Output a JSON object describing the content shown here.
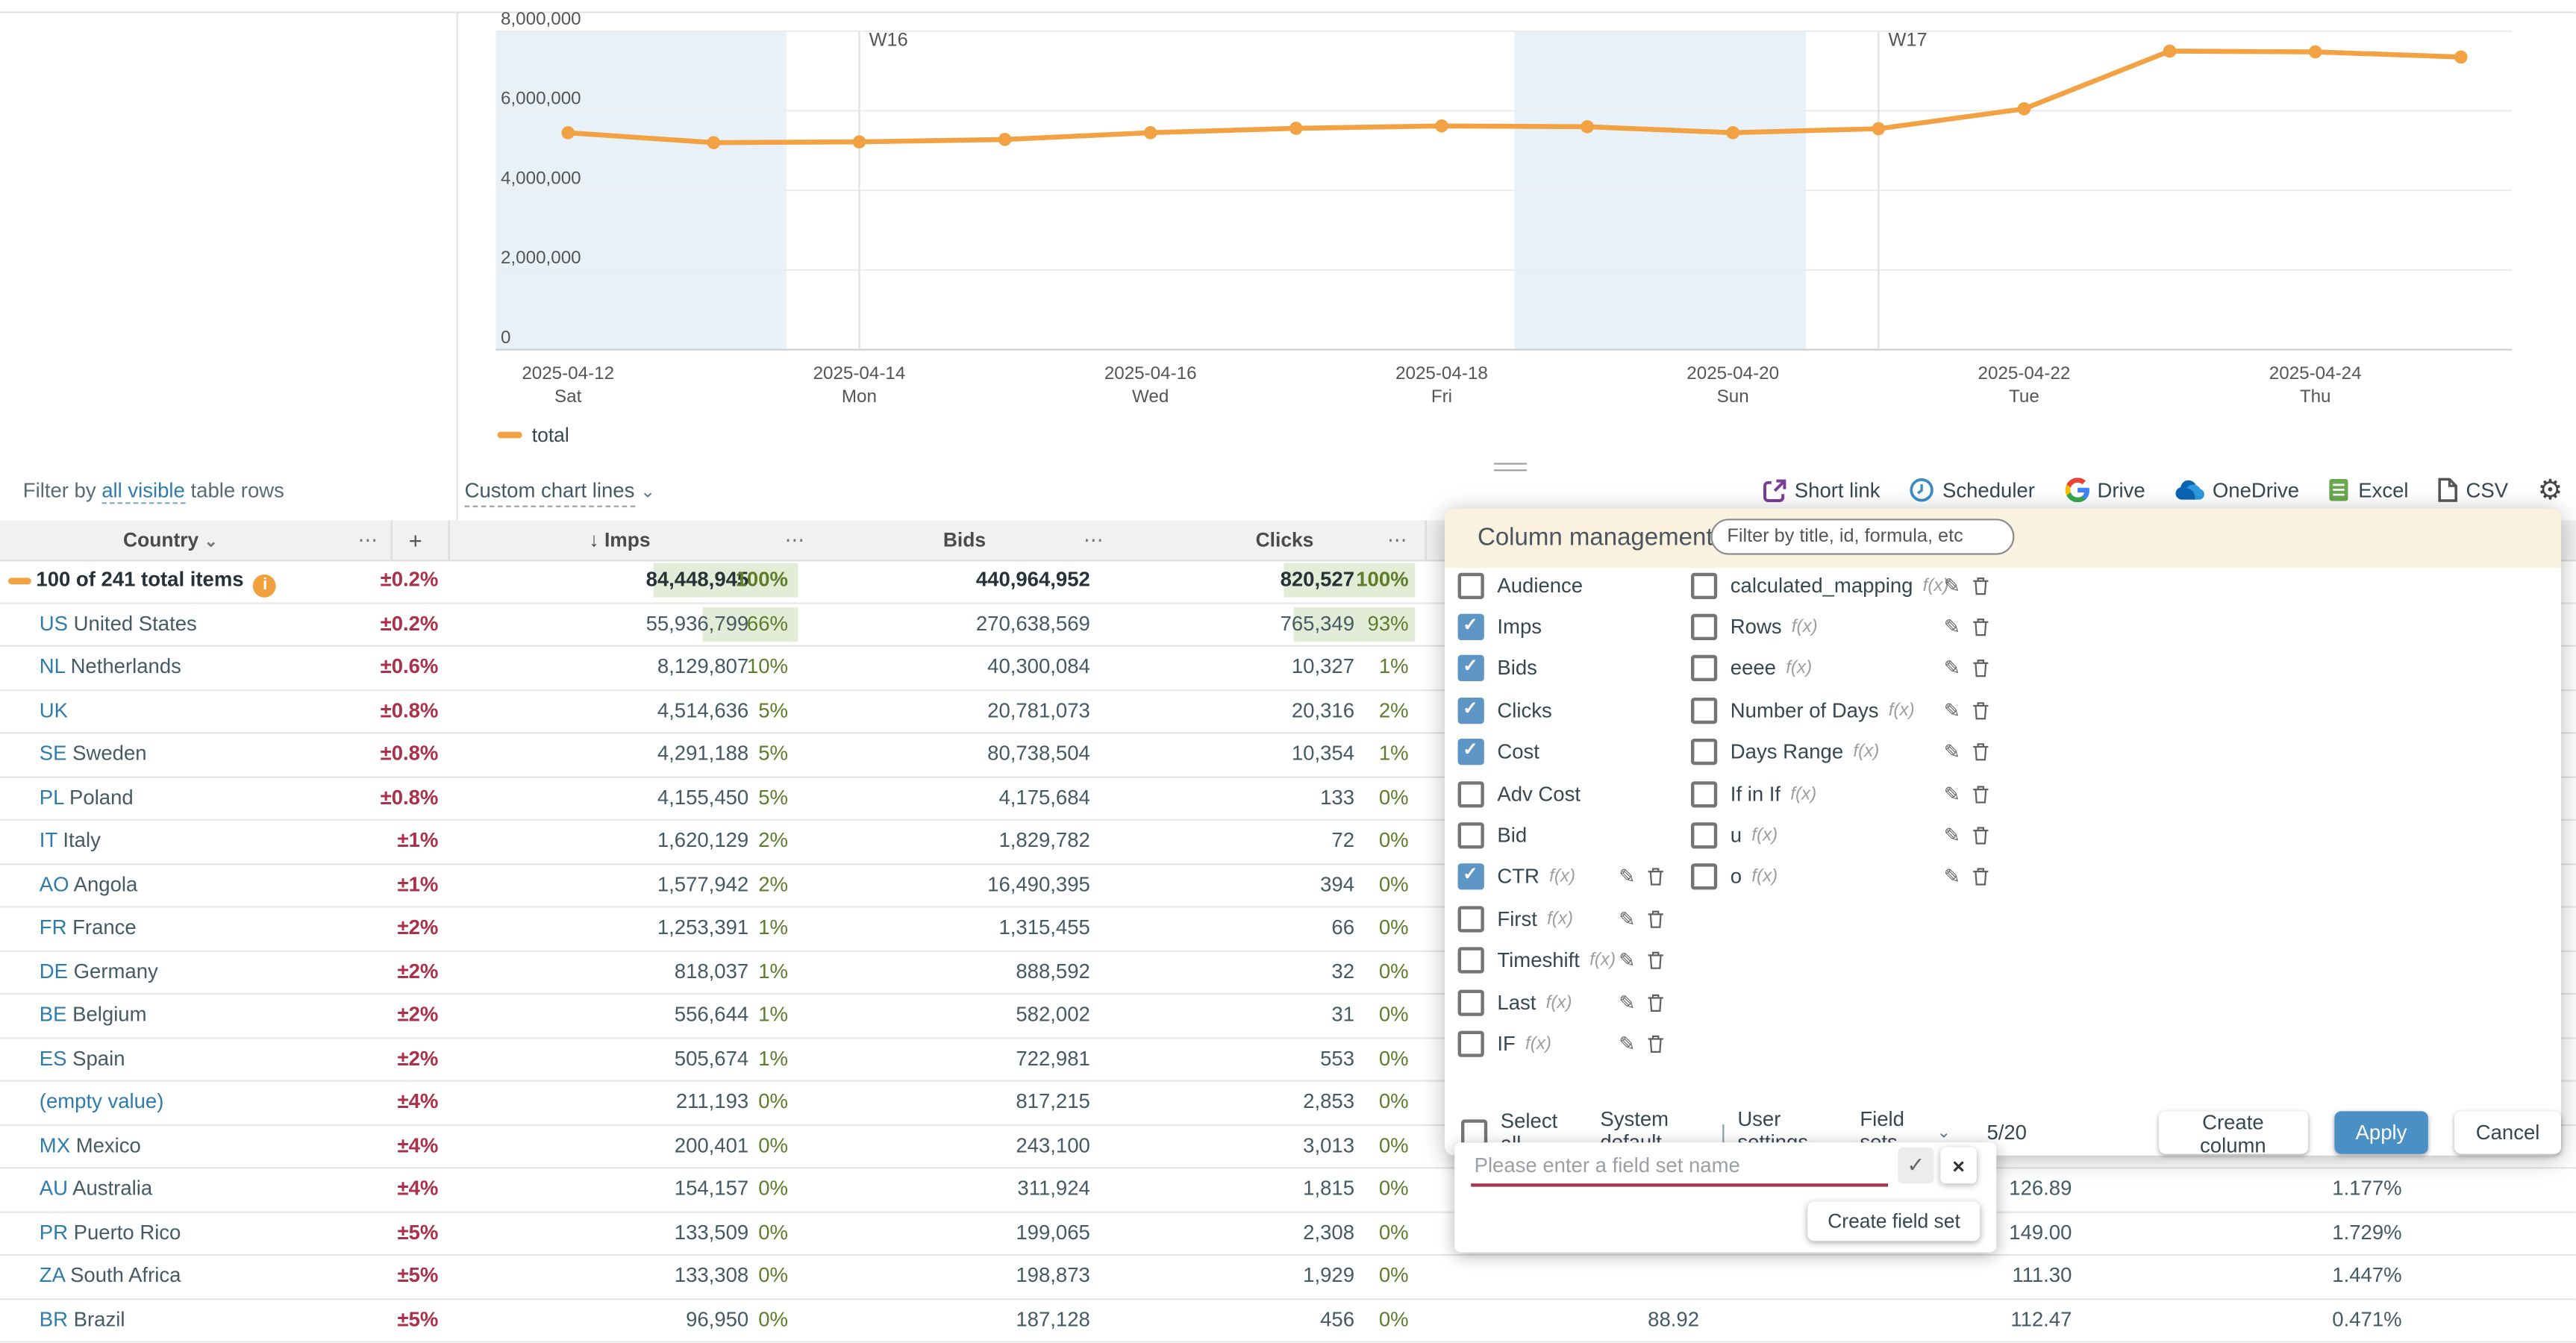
{
  "chart_data": {
    "type": "line",
    "title": "",
    "legend": [
      "total"
    ],
    "legend_position": "bottom-left",
    "grid": true,
    "ylim": [
      0,
      8000000
    ],
    "yticks": [
      0,
      2000000,
      4000000,
      6000000,
      8000000
    ],
    "x": [
      "2025-04-12",
      "2025-04-13",
      "2025-04-14",
      "2025-04-15",
      "2025-04-16",
      "2025-04-17",
      "2025-04-18",
      "2025-04-19",
      "2025-04-20",
      "2025-04-21",
      "2025-04-22",
      "2025-04-23",
      "2025-04-24",
      "2025-04-25"
    ],
    "x_tick_labels": [
      {
        "date": "2025-04-12",
        "dow": "Sat",
        "index": 0
      },
      {
        "date": "2025-04-14",
        "dow": "Mon",
        "index": 2
      },
      {
        "date": "2025-04-16",
        "dow": "Wed",
        "index": 4
      },
      {
        "date": "2025-04-18",
        "dow": "Fri",
        "index": 6
      },
      {
        "date": "2025-04-20",
        "dow": "Sun",
        "index": 8
      },
      {
        "date": "2025-04-22",
        "dow": "Tue",
        "index": 10
      },
      {
        "date": "2025-04-24",
        "dow": "Thu",
        "index": 12
      }
    ],
    "week_markers": [
      {
        "label": "W16",
        "index": 2
      },
      {
        "label": "W17",
        "index": 9
      }
    ],
    "weekend_bands": [
      [
        0,
        1
      ],
      [
        7,
        8
      ]
    ],
    "series": [
      {
        "name": "total",
        "color": "#F2A242",
        "values": [
          5450000,
          5200000,
          5220000,
          5280000,
          5450000,
          5560000,
          5620000,
          5600000,
          5450000,
          5550000,
          6050000,
          7500000,
          7480000,
          7350000
        ]
      }
    ]
  },
  "filter_row": {
    "prefix": "Filter by",
    "link": "all visible",
    "suffix": "table rows",
    "custom_chart_lines": "Custom chart lines"
  },
  "toolbar": {
    "short_link": "Short link",
    "scheduler": "Scheduler",
    "drive": "Drive",
    "onedrive": "OneDrive",
    "excel": "Excel",
    "csv": "CSV"
  },
  "table": {
    "headers": {
      "country": "Country",
      "add": "+",
      "imps": "Imps",
      "bids": "Bids",
      "clicks": "Clicks",
      "sort_icon": "↓",
      "menu_icon": "⋯"
    },
    "rows": [
      {
        "total": true,
        "label": "100 of 241 total items",
        "info": true,
        "delta": "±0.2%",
        "imps": "84,448,945",
        "imps_pct": "100%",
        "imps_bar": 100,
        "bids": "440,964,952",
        "clicks": "820,527",
        "clicks_pct": "100%",
        "clicks_bar": 100,
        "extra1": "",
        "extra2": "",
        "ctr": ""
      },
      {
        "code": "US",
        "name": "United States",
        "delta": "±0.2%",
        "imps": "55,936,799",
        "imps_pct": "66%",
        "imps_bar": 66,
        "bids": "270,638,569",
        "clicks": "765,349",
        "clicks_pct": "93%",
        "clicks_bar": 93,
        "extra1": "",
        "extra2": "",
        "ctr": ""
      },
      {
        "code": "NL",
        "name": "Netherlands",
        "delta": "±0.6%",
        "imps": "8,129,807",
        "imps_pct": "10%",
        "imps_bar": 0,
        "bids": "40,300,084",
        "clicks": "10,327",
        "clicks_pct": "1%",
        "clicks_bar": 0,
        "extra1": "",
        "extra2": "",
        "ctr": ""
      },
      {
        "code": "UK",
        "name": "",
        "delta": "±0.8%",
        "imps": "4,514,636",
        "imps_pct": "5%",
        "imps_bar": 0,
        "bids": "20,781,073",
        "clicks": "20,316",
        "clicks_pct": "2%",
        "clicks_bar": 0,
        "extra1": "",
        "extra2": "",
        "ctr": ""
      },
      {
        "code": "SE",
        "name": "Sweden",
        "delta": "±0.8%",
        "imps": "4,291,188",
        "imps_pct": "5%",
        "imps_bar": 0,
        "bids": "80,738,504",
        "clicks": "10,354",
        "clicks_pct": "1%",
        "clicks_bar": 0,
        "extra1": "",
        "extra2": "",
        "ctr": ""
      },
      {
        "code": "PL",
        "name": "Poland",
        "delta": "±0.8%",
        "imps": "4,155,450",
        "imps_pct": "5%",
        "imps_bar": 0,
        "bids": "4,175,684",
        "clicks": "133",
        "clicks_pct": "0%",
        "clicks_bar": 0,
        "extra1": "",
        "extra2": "",
        "ctr": ""
      },
      {
        "code": "IT",
        "name": "Italy",
        "delta": "±1%",
        "imps": "1,620,129",
        "imps_pct": "2%",
        "imps_bar": 0,
        "bids": "1,829,782",
        "clicks": "72",
        "clicks_pct": "0%",
        "clicks_bar": 0,
        "extra1": "",
        "extra2": "",
        "ctr": ""
      },
      {
        "code": "AO",
        "name": "Angola",
        "delta": "±1%",
        "imps": "1,577,942",
        "imps_pct": "2%",
        "imps_bar": 0,
        "bids": "16,490,395",
        "clicks": "394",
        "clicks_pct": "0%",
        "clicks_bar": 0,
        "extra1": "",
        "extra2": "",
        "ctr": ""
      },
      {
        "code": "FR",
        "name": "France",
        "delta": "±2%",
        "imps": "1,253,391",
        "imps_pct": "1%",
        "imps_bar": 0,
        "bids": "1,315,455",
        "clicks": "66",
        "clicks_pct": "0%",
        "clicks_bar": 0,
        "extra1": "",
        "extra2": "",
        "ctr": ""
      },
      {
        "code": "DE",
        "name": "Germany",
        "delta": "±2%",
        "imps": "818,037",
        "imps_pct": "1%",
        "imps_bar": 0,
        "bids": "888,592",
        "clicks": "32",
        "clicks_pct": "0%",
        "clicks_bar": 0,
        "extra1": "",
        "extra2": "",
        "ctr": ""
      },
      {
        "code": "BE",
        "name": "Belgium",
        "delta": "±2%",
        "imps": "556,644",
        "imps_pct": "1%",
        "imps_bar": 0,
        "bids": "582,002",
        "clicks": "31",
        "clicks_pct": "0%",
        "clicks_bar": 0,
        "extra1": "",
        "extra2": "",
        "ctr": ""
      },
      {
        "code": "ES",
        "name": "Spain",
        "delta": "±2%",
        "imps": "505,674",
        "imps_pct": "1%",
        "imps_bar": 0,
        "bids": "722,981",
        "clicks": "553",
        "clicks_pct": "0%",
        "clicks_bar": 0,
        "extra1": "",
        "extra2": "",
        "ctr": ""
      },
      {
        "empty": true,
        "name": "(empty value)",
        "delta": "±4%",
        "imps": "211,193",
        "imps_pct": "0%",
        "imps_bar": 0,
        "bids": "817,215",
        "clicks": "2,853",
        "clicks_pct": "0%",
        "clicks_bar": 0,
        "extra1": "",
        "extra2": "",
        "ctr": ""
      },
      {
        "code": "MX",
        "name": "Mexico",
        "delta": "±4%",
        "imps": "200,401",
        "imps_pct": "0%",
        "imps_bar": 0,
        "bids": "243,100",
        "clicks": "3,013",
        "clicks_pct": "0%",
        "clicks_bar": 0,
        "extra1": "",
        "extra2": "",
        "ctr": ""
      },
      {
        "code": "AU",
        "name": "Australia",
        "delta": "±4%",
        "imps": "154,157",
        "imps_pct": "0%",
        "imps_bar": 0,
        "bids": "311,924",
        "clicks": "1,815",
        "clicks_pct": "0%",
        "clicks_bar": 0,
        "extra1": "",
        "extra2": "126.89",
        "ctr": "1.177%"
      },
      {
        "code": "PR",
        "name": "Puerto Rico",
        "delta": "±5%",
        "imps": "133,509",
        "imps_pct": "0%",
        "imps_bar": 0,
        "bids": "199,065",
        "clicks": "2,308",
        "clicks_pct": "0%",
        "clicks_bar": 0,
        "extra1": "",
        "extra2": "149.00",
        "ctr": "1.729%"
      },
      {
        "code": "ZA",
        "name": "South Africa",
        "delta": "±5%",
        "imps": "133,308",
        "imps_pct": "0%",
        "imps_bar": 0,
        "bids": "198,873",
        "clicks": "1,929",
        "clicks_pct": "0%",
        "clicks_bar": 0,
        "extra1": "",
        "extra2": "111.30",
        "ctr": "1.447%"
      },
      {
        "code": "BR",
        "name": "Brazil",
        "delta": "±5%",
        "imps": "96,950",
        "imps_pct": "0%",
        "imps_bar": 0,
        "bids": "187,128",
        "clicks": "456",
        "clicks_pct": "0%",
        "clicks_bar": 0,
        "extra1": "88.92",
        "extra2": "112.47",
        "ctr": "0.471%"
      }
    ]
  },
  "panel": {
    "title": "Column management",
    "filter_placeholder": "Filter by title, id, formula, etc",
    "columns_left": [
      {
        "label": "Audience",
        "checked": false,
        "fx": false,
        "editable": false
      },
      {
        "label": "Imps",
        "checked": true,
        "fx": false,
        "editable": false
      },
      {
        "label": "Bids",
        "checked": true,
        "fx": false,
        "editable": false
      },
      {
        "label": "Clicks",
        "checked": true,
        "fx": false,
        "editable": false
      },
      {
        "label": "Cost",
        "checked": true,
        "fx": false,
        "editable": false
      },
      {
        "label": "Adv Cost",
        "checked": false,
        "fx": false,
        "editable": false
      },
      {
        "label": "Bid",
        "checked": false,
        "fx": false,
        "editable": false
      },
      {
        "label": "CTR",
        "checked": true,
        "fx": true,
        "editable": true
      },
      {
        "label": "First",
        "checked": false,
        "fx": true,
        "editable": true
      },
      {
        "label": "Timeshift",
        "checked": false,
        "fx": true,
        "editable": true
      },
      {
        "label": "Last",
        "checked": false,
        "fx": true,
        "editable": true
      },
      {
        "label": "IF",
        "checked": false,
        "fx": true,
        "editable": true
      }
    ],
    "columns_right": [
      {
        "label": "calculated_mapping",
        "checked": false,
        "fx": true,
        "editable": true
      },
      {
        "label": "Rows",
        "checked": false,
        "fx": true,
        "editable": true
      },
      {
        "label": "eeee",
        "checked": false,
        "fx": true,
        "editable": true
      },
      {
        "label": "Number of Days",
        "checked": false,
        "fx": true,
        "editable": true
      },
      {
        "label": "Days Range",
        "checked": false,
        "fx": true,
        "editable": true
      },
      {
        "label": "If in If",
        "checked": false,
        "fx": true,
        "editable": true
      },
      {
        "label": "u",
        "checked": false,
        "fx": true,
        "editable": true
      },
      {
        "label": "o",
        "checked": false,
        "fx": true,
        "editable": true
      }
    ],
    "fx_label": "f(x)",
    "select_all": "Select all",
    "system_default": "System default",
    "separator": "|",
    "user_settings": "User settings",
    "field_sets": "Field sets",
    "counter": "5/20",
    "create_column": "Create column",
    "apply": "Apply",
    "cancel": "Cancel"
  },
  "fieldset_popup": {
    "placeholder": "Please enter a field set name",
    "create_button": "Create field set"
  }
}
